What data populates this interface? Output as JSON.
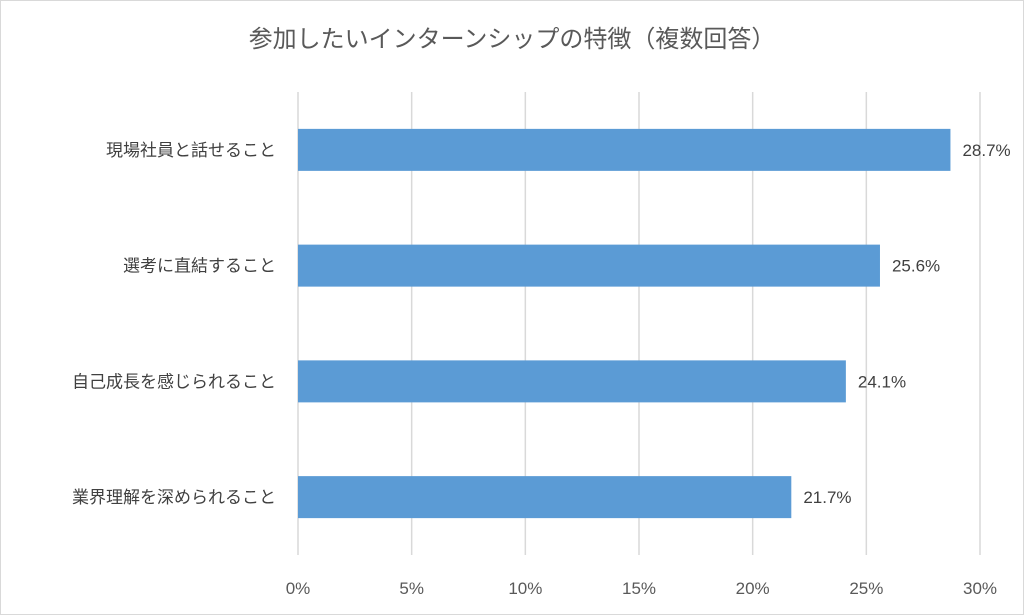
{
  "chart_data": {
    "type": "bar",
    "orientation": "horizontal",
    "title": "参加したいインターンシップの特徴（複数回答）",
    "categories": [
      "現場社員と話せること",
      "選考に直結すること",
      "自己成長を感じられること",
      "業界理解を深められること"
    ],
    "values": [
      28.7,
      25.6,
      24.1,
      21.7
    ],
    "data_labels": [
      "28.7%",
      "25.6%",
      "24.1%",
      "21.7%"
    ],
    "xlim": [
      0,
      30
    ],
    "x_ticks": [
      0,
      5,
      10,
      15,
      20,
      25,
      30
    ],
    "x_tick_labels": [
      "0%",
      "5%",
      "10%",
      "15%",
      "20%",
      "25%",
      "30%"
    ],
    "grid": true,
    "legend": "none",
    "bar_color": "#5b9bd5"
  }
}
